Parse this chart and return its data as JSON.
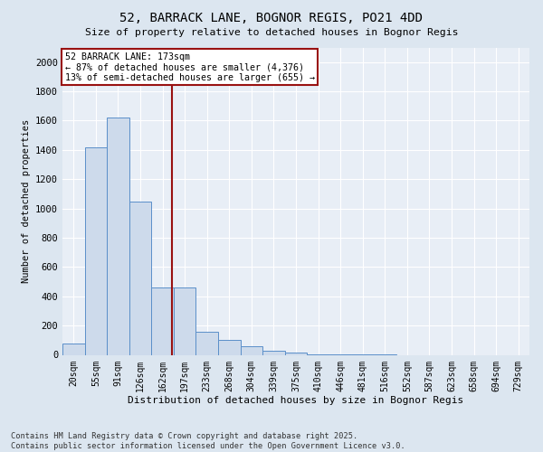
{
  "title_line1": "52, BARRACK LANE, BOGNOR REGIS, PO21 4DD",
  "title_line2": "Size of property relative to detached houses in Bognor Regis",
  "xlabel": "Distribution of detached houses by size in Bognor Regis",
  "ylabel": "Number of detached properties",
  "categories": [
    "20sqm",
    "55sqm",
    "91sqm",
    "126sqm",
    "162sqm",
    "197sqm",
    "233sqm",
    "268sqm",
    "304sqm",
    "339sqm",
    "375sqm",
    "410sqm",
    "446sqm",
    "481sqm",
    "516sqm",
    "552sqm",
    "587sqm",
    "623sqm",
    "658sqm",
    "694sqm",
    "729sqm"
  ],
  "values": [
    75,
    1420,
    1620,
    1050,
    460,
    460,
    155,
    105,
    60,
    25,
    15,
    5,
    5,
    5,
    5,
    0,
    0,
    0,
    0,
    0,
    0
  ],
  "bar_color": "#cddaeb",
  "bar_edge_color": "#5b8fc9",
  "vline_x": 4.42,
  "vline_color": "#991111",
  "annotation_box_color": "#991111",
  "marker_label": "52 BARRACK LANE: 173sqm",
  "annotation_line1": "← 87% of detached houses are smaller (4,376)",
  "annotation_line2": "13% of semi-detached houses are larger (655) →",
  "ylim": [
    0,
    2100
  ],
  "yticks": [
    0,
    200,
    400,
    600,
    800,
    1000,
    1200,
    1400,
    1600,
    1800,
    2000
  ],
  "footer_line1": "Contains HM Land Registry data © Crown copyright and database right 2025.",
  "footer_line2": "Contains public sector information licensed under the Open Government Licence v3.0.",
  "bg_color": "#dce6f0",
  "plot_bg_color": "#e8eef6"
}
